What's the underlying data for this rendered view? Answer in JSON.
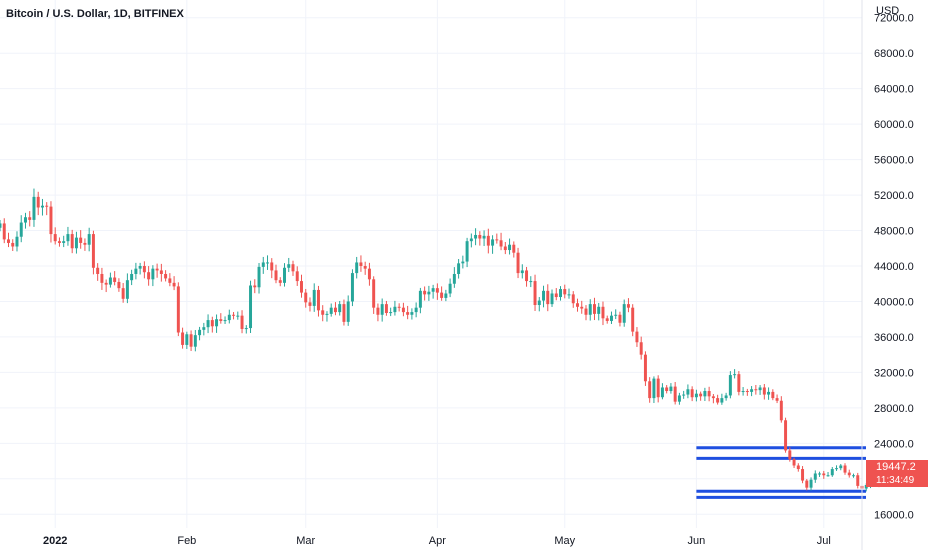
{
  "chart_data": {
    "type": "candlestick",
    "title": "Bitcoin / U.S. Dollar, 1D, BITFINEX",
    "currency": "USD",
    "ylim": [
      14000,
      74000
    ],
    "yticks": [
      16000,
      20000,
      24000,
      28000,
      32000,
      36000,
      40000,
      44000,
      48000,
      52000,
      56000,
      60000,
      64000,
      68000,
      72000
    ],
    "ytick_labels": [
      "16000.0",
      "20000.0",
      "24000.0",
      "28000.0",
      "32000.0",
      "36000.0",
      "40000.0",
      "44000.0",
      "48000.0",
      "52000.0",
      "56000.0",
      "60000.0",
      "64000.0",
      "68000.0",
      "72000.0"
    ],
    "xlim": [
      "2021-12-19",
      "2022-07-10"
    ],
    "xticks": [
      {
        "date": "2022-01-01",
        "label": "2022",
        "bold": true
      },
      {
        "date": "2022-02-01",
        "label": "Feb"
      },
      {
        "date": "2022-03-01",
        "label": "Mar"
      },
      {
        "date": "2022-04-01",
        "label": "Apr"
      },
      {
        "date": "2022-05-01",
        "label": "May"
      },
      {
        "date": "2022-06-01",
        "label": "Jun"
      },
      {
        "date": "2022-07-01",
        "label": "Jul"
      }
    ],
    "grid": true,
    "colors": {
      "up": "#26a69a",
      "down": "#ef5350",
      "level_line": "#1f4fe0",
      "grid": "#f0f3fa"
    },
    "start_date": "2021-12-19",
    "closes": [
      48800,
      47000,
      46600,
      46200,
      47300,
      48900,
      49500,
      49200,
      51800,
      50600,
      50800,
      50700,
      47600,
      46800,
      46600,
      46800,
      47600,
      46000,
      47200,
      46600,
      46400,
      47600,
      43800,
      43100,
      42100,
      41900,
      42700,
      42200,
      41500,
      40300,
      42400,
      43100,
      43700,
      44000,
      43300,
      42500,
      43700,
      43500,
      43100,
      42600,
      42100,
      41700,
      36500,
      35100,
      36300,
      34900,
      36200,
      36800,
      37100,
      37900,
      37200,
      38000,
      37800,
      37900,
      38500,
      38400,
      38400,
      36900,
      37000,
      41800,
      41600,
      43900,
      44400,
      44400,
      43500,
      42400,
      42100,
      43800,
      44200,
      43400,
      42300,
      41000,
      39900,
      39500,
      41300,
      39000,
      38500,
      38600,
      39300,
      38800,
      39700,
      37700,
      40000,
      43200,
      44400,
      44000,
      43700,
      42500,
      39300,
      38500,
      39700,
      38700,
      38800,
      39400,
      39300,
      38800,
      38500,
      38800,
      39300,
      41200,
      40800,
      41100,
      41500,
      41000,
      40400,
      40900,
      42000,
      43100,
      44300,
      44500,
      46800,
      47100,
      47500,
      47100,
      47400,
      46300,
      47000,
      46900,
      46200,
      45800,
      46400,
      45500,
      43200,
      43500,
      42300,
      42300,
      39600,
      40100,
      41200,
      39700,
      40900,
      40500,
      41400,
      40800,
      40800,
      39800,
      39400,
      39200,
      38500,
      39700,
      38600,
      39400,
      38100,
      37800,
      38400,
      38500,
      37600,
      39700,
      39300,
      36600,
      35400,
      34000,
      31000,
      29100,
      31300,
      29200,
      30300,
      29900,
      30400,
      28700,
      29400,
      29500,
      30100,
      29200,
      29600,
      29300,
      29900,
      29300,
      29100,
      28600,
      29100,
      29400,
      31700,
      31800,
      29800,
      29900,
      29800,
      30100,
      30000,
      30300,
      29500,
      29800,
      29100,
      28800,
      26600,
      23200,
      22200,
      21500,
      21100,
      19800,
      19000,
      19900,
      20600,
      20600,
      20400,
      20400,
      21100,
      21200,
      21500,
      20700,
      20400,
      20400,
      19200,
      18900,
      19300,
      19800,
      19900,
      19447
    ]
  },
  "levels": [
    23500,
    22300,
    18600,
    17900
  ],
  "last_price": {
    "price": "19447.2",
    "countdown": "11:34:49"
  }
}
